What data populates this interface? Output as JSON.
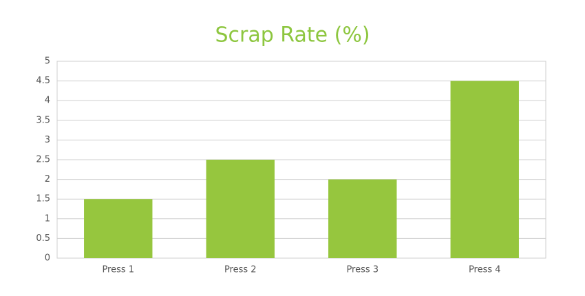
{
  "chart_data": {
    "type": "bar",
    "title": "Scrap Rate (%)",
    "categories": [
      "Press 1",
      "Press 2",
      "Press 3",
      "Press 4"
    ],
    "values": [
      1.5,
      2.5,
      2,
      4.5
    ],
    "color": "#96c63e",
    "ylim": [
      0,
      5
    ],
    "yticks": [
      0,
      0.5,
      1,
      1.5,
      2,
      2.5,
      3,
      3.5,
      4,
      4.5,
      5
    ],
    "grid": true
  }
}
